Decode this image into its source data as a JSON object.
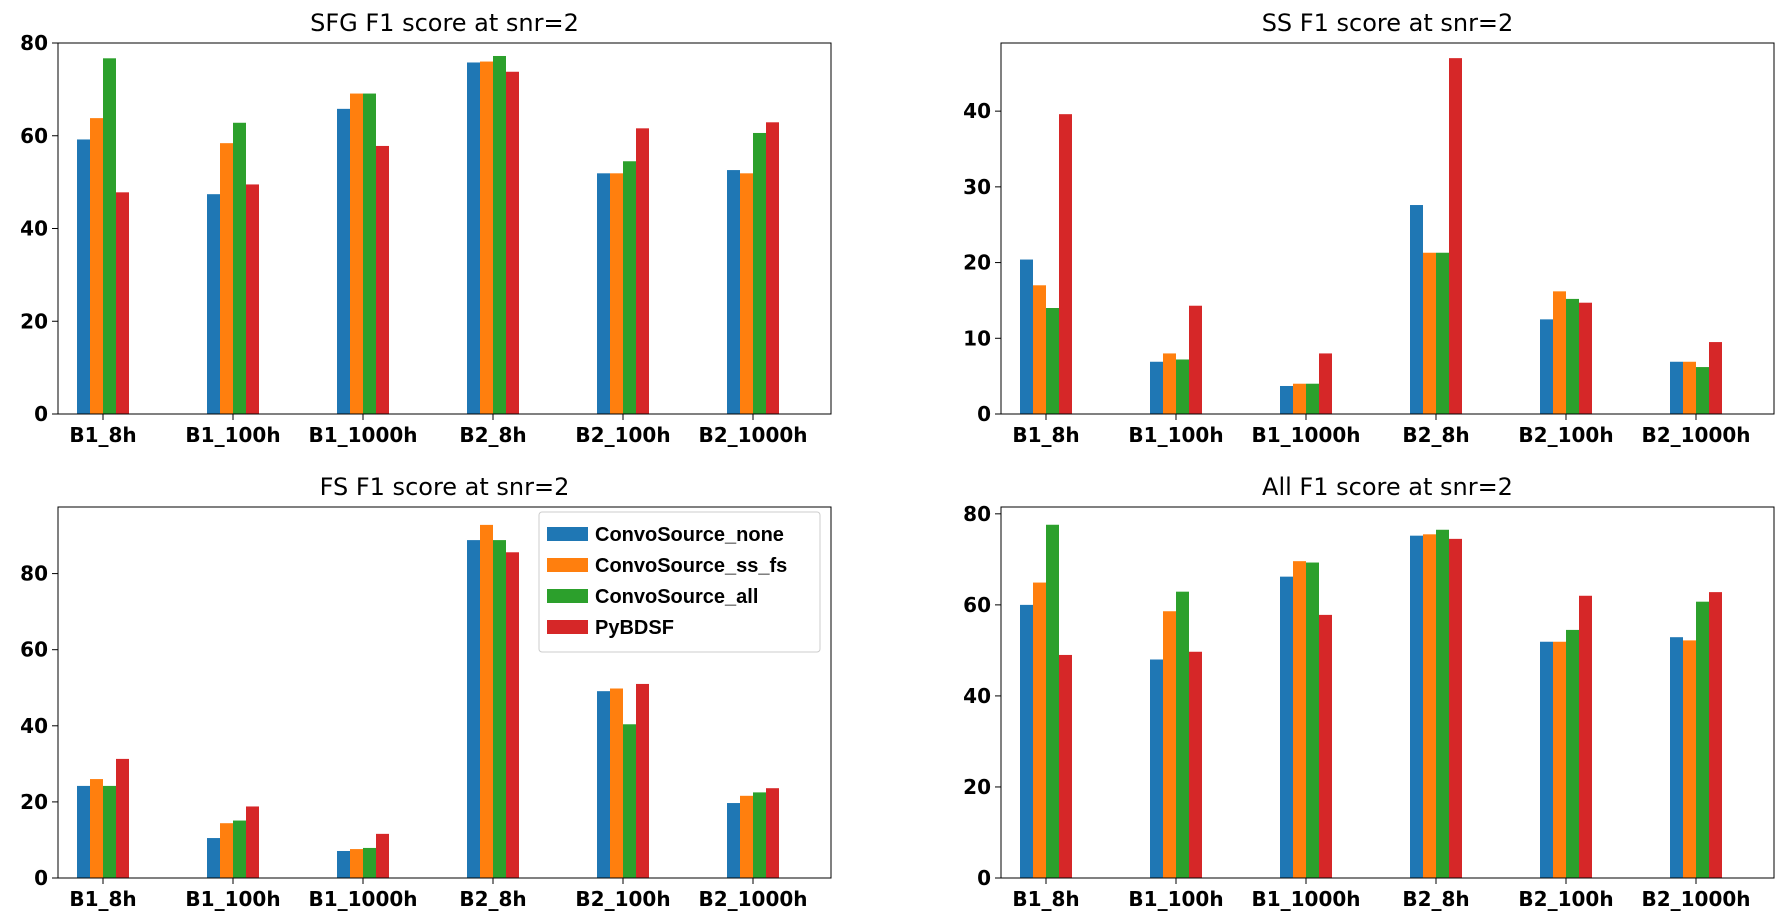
{
  "chart_data": [
    {
      "type": "bar",
      "title": "SFG F1 score at snr=2",
      "categories": [
        "B1_8h",
        "B1_100h",
        "B1_1000h",
        "B2_8h",
        "B2_100h",
        "B2_1000h"
      ],
      "ylim": [
        0,
        80
      ],
      "yticks": [
        0,
        20,
        40,
        60,
        80
      ],
      "series": [
        {
          "name": "ConvoSource_none",
          "color": "#1f77b4",
          "values": [
            59.2,
            47.4,
            65.8,
            75.8,
            51.9,
            52.6
          ]
        },
        {
          "name": "ConvoSource_ss_fs",
          "color": "#ff7f0e",
          "values": [
            63.8,
            58.4,
            69.1,
            76.0,
            51.9,
            51.9
          ]
        },
        {
          "name": "ConvoSource_all",
          "color": "#2ca02c",
          "values": [
            76.7,
            62.8,
            69.1,
            77.2,
            54.5,
            60.6
          ]
        },
        {
          "name": "PyBDSF",
          "color": "#d62728",
          "values": [
            47.8,
            49.5,
            57.8,
            73.8,
            61.6,
            62.9
          ]
        }
      ]
    },
    {
      "type": "bar",
      "title": "SS F1 score at snr=2",
      "categories": [
        "B1_8h",
        "B1_100h",
        "B1_1000h",
        "B2_8h",
        "B2_100h",
        "B2_1000h"
      ],
      "ylim": [
        0,
        49
      ],
      "yticks": [
        0,
        10,
        20,
        30,
        40
      ],
      "series": [
        {
          "name": "ConvoSource_none",
          "color": "#1f77b4",
          "values": [
            20.4,
            6.9,
            3.7,
            27.6,
            12.5,
            6.9
          ]
        },
        {
          "name": "ConvoSource_ss_fs",
          "color": "#ff7f0e",
          "values": [
            17.0,
            8.0,
            4.0,
            21.3,
            16.2,
            6.9
          ]
        },
        {
          "name": "ConvoSource_all",
          "color": "#2ca02c",
          "values": [
            14.0,
            7.2,
            4.0,
            21.3,
            15.2,
            6.2
          ]
        },
        {
          "name": "PyBDSF",
          "color": "#d62728",
          "values": [
            39.6,
            14.3,
            8.0,
            47.0,
            14.7,
            9.5
          ]
        }
      ]
    },
    {
      "type": "bar",
      "title": "FS F1 score at snr=2",
      "categories": [
        "B1_8h",
        "B1_100h",
        "B1_1000h",
        "B2_8h",
        "B2_100h",
        "B2_1000h"
      ],
      "ylim": [
        0,
        97.5
      ],
      "yticks": [
        0,
        20,
        40,
        60,
        80
      ],
      "legend": "top-right",
      "series": [
        {
          "name": "ConvoSource_none",
          "color": "#1f77b4",
          "values": [
            24.2,
            10.5,
            7.1,
            88.8,
            49.1,
            19.7
          ]
        },
        {
          "name": "ConvoSource_ss_fs",
          "color": "#ff7f0e",
          "values": [
            26.0,
            14.4,
            7.6,
            92.8,
            49.8,
            21.6
          ]
        },
        {
          "name": "ConvoSource_all",
          "color": "#2ca02c",
          "values": [
            24.2,
            15.1,
            7.9,
            88.8,
            40.4,
            22.5
          ]
        },
        {
          "name": "PyBDSF",
          "color": "#d62728",
          "values": [
            31.3,
            18.8,
            11.6,
            85.6,
            51.0,
            23.6
          ]
        }
      ]
    },
    {
      "type": "bar",
      "title": "All F1 score at snr=2",
      "categories": [
        "B1_8h",
        "B1_100h",
        "B1_1000h",
        "B2_8h",
        "B2_100h",
        "B2_1000h"
      ],
      "ylim": [
        0,
        81.5
      ],
      "yticks": [
        0,
        20,
        40,
        60,
        80
      ],
      "series": [
        {
          "name": "ConvoSource_none",
          "color": "#1f77b4",
          "values": [
            60.0,
            48.0,
            66.2,
            75.2,
            51.9,
            52.9
          ]
        },
        {
          "name": "ConvoSource_ss_fs",
          "color": "#ff7f0e",
          "values": [
            64.9,
            58.6,
            69.6,
            75.5,
            51.9,
            52.2
          ]
        },
        {
          "name": "ConvoSource_all",
          "color": "#2ca02c",
          "values": [
            77.6,
            62.9,
            69.3,
            76.5,
            54.5,
            60.7
          ]
        },
        {
          "name": "PyBDSF",
          "color": "#d62728",
          "values": [
            49.0,
            49.7,
            57.8,
            74.5,
            62.0,
            62.8
          ]
        }
      ]
    }
  ]
}
